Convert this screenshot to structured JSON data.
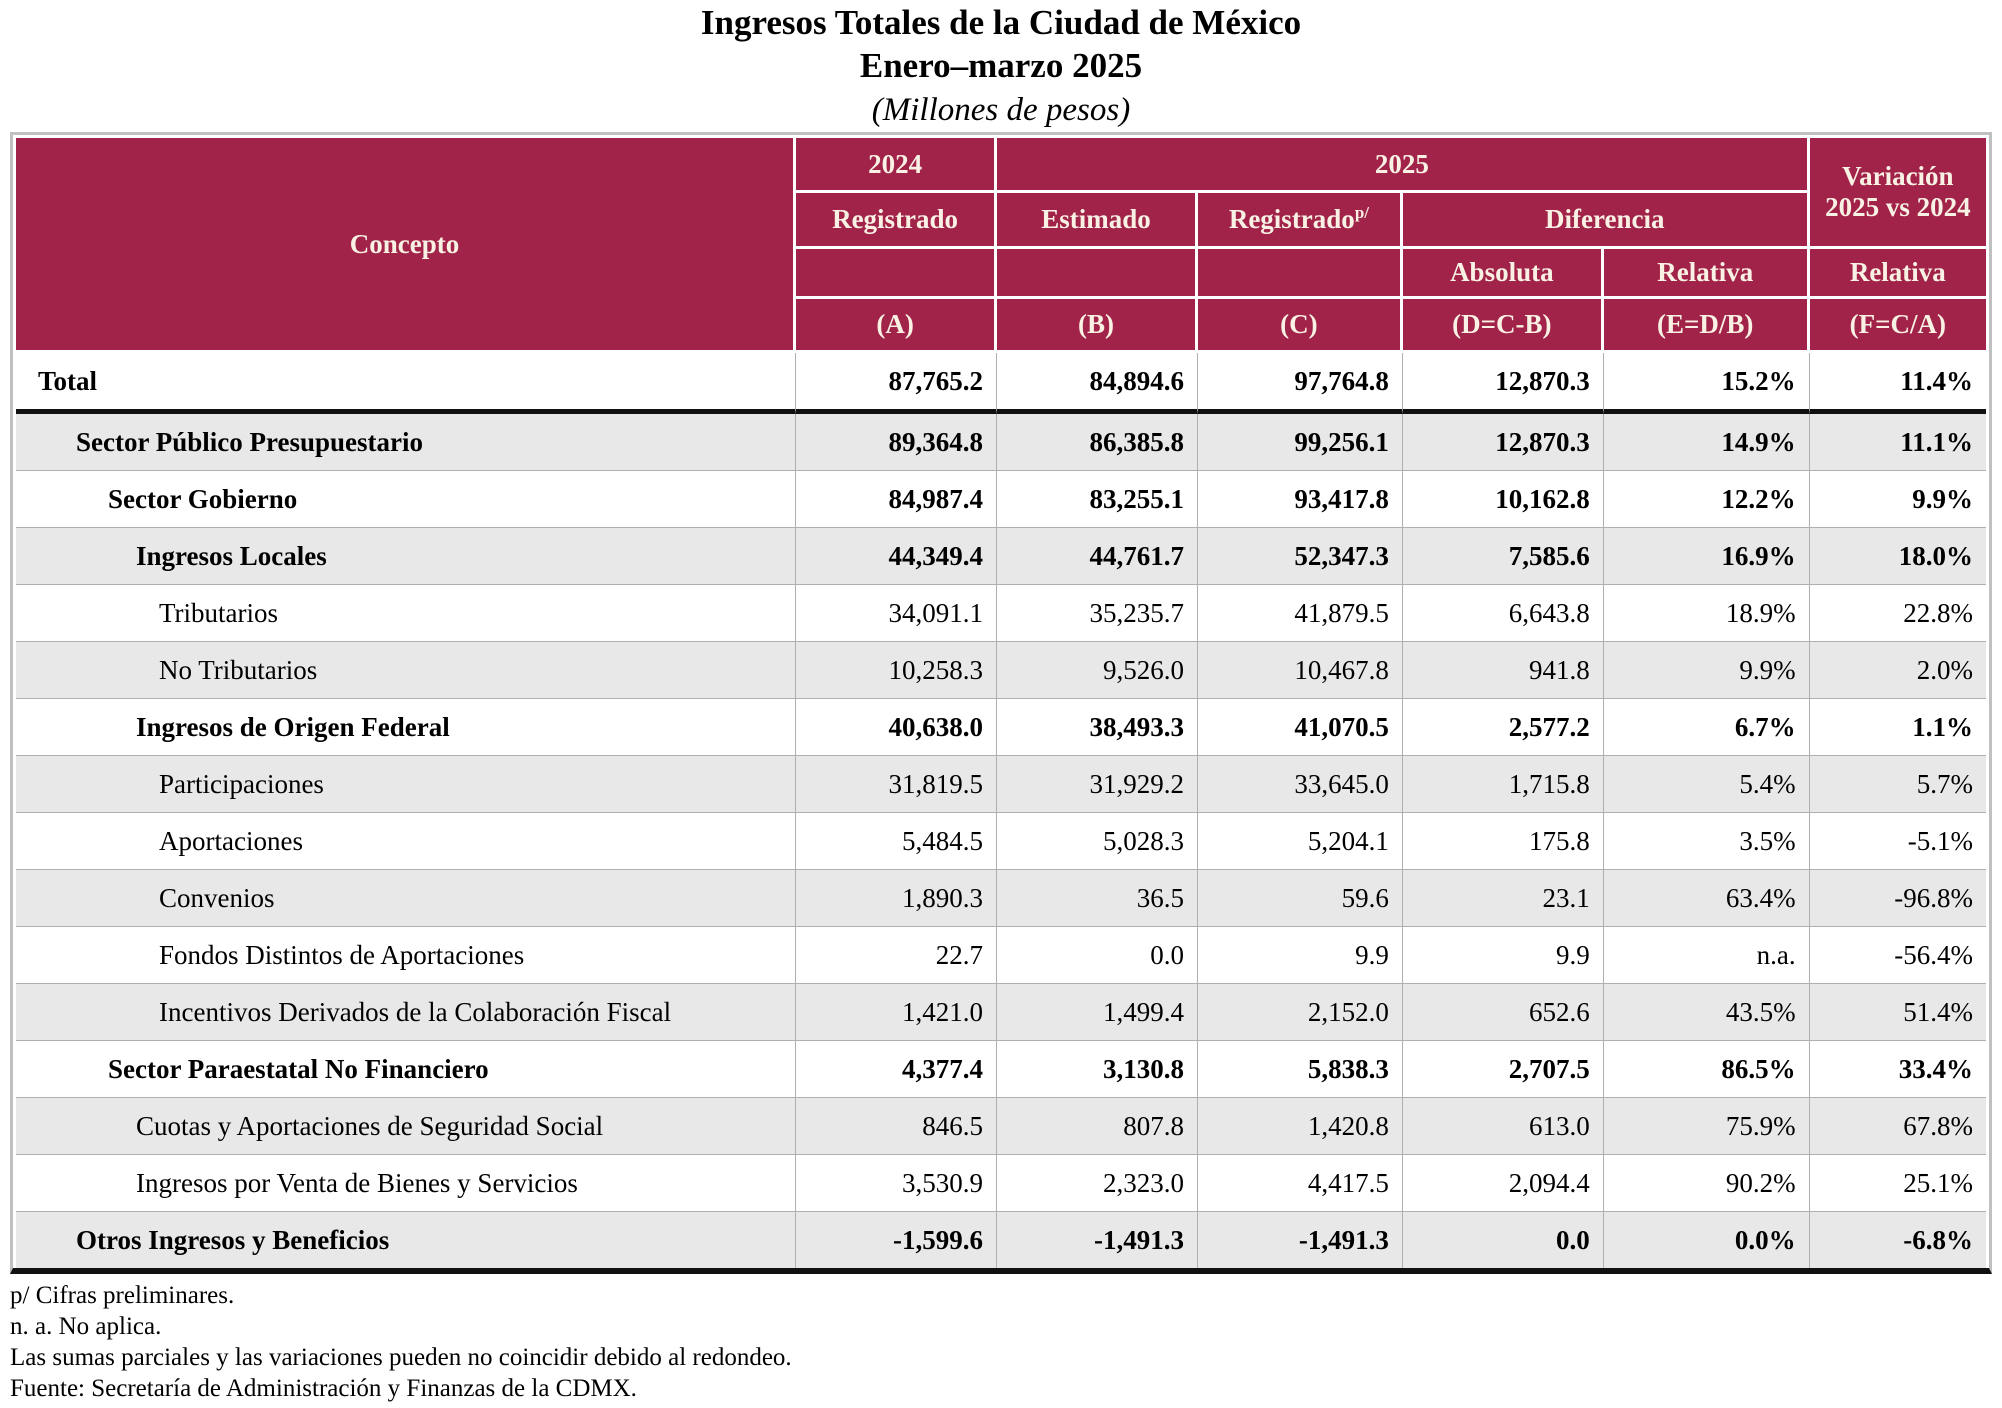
{
  "title": {
    "line1": "Ingresos Totales de la Ciudad de México",
    "line2": "Enero–marzo 2025",
    "line3": "(Millones de pesos)"
  },
  "header": {
    "concepto": "Concepto",
    "year_2024": "2024",
    "year_2025": "2025",
    "variacion": "Variación 2025 vs 2024",
    "registrado": "Registrado",
    "estimado": "Estimado",
    "registrado_p": "Registrado",
    "registrado_sup": "p/",
    "diferencia": "Diferencia",
    "absoluta": "Absoluta",
    "relativa": "Relativa",
    "relativa_f": "Relativa",
    "col_a": "(A)",
    "col_b": "(B)",
    "col_c": "(C)",
    "col_d": "(D=C-B)",
    "col_e": "(E=D/B)",
    "col_f": "(F=C/A)"
  },
  "table": {
    "rows": [
      {
        "label": "Total",
        "indent": 0,
        "bold": true,
        "shaded": false,
        "thick_bottom": true,
        "values": [
          "87,765.2",
          "84,894.6",
          "97,764.8",
          "12,870.3",
          "15.2%",
          "11.4%"
        ]
      },
      {
        "label": "Sector Público Presupuestario",
        "indent": 1,
        "bold": true,
        "shaded": true,
        "thick_bottom": false,
        "values": [
          "89,364.8",
          "86,385.8",
          "99,256.1",
          "12,870.3",
          "14.9%",
          "11.1%"
        ]
      },
      {
        "label": "Sector Gobierno",
        "indent": 2,
        "bold": true,
        "shaded": false,
        "thick_bottom": false,
        "values": [
          "84,987.4",
          "83,255.1",
          "93,417.8",
          "10,162.8",
          "12.2%",
          "9.9%"
        ]
      },
      {
        "label": "Ingresos Locales",
        "indent": 3,
        "bold": true,
        "shaded": true,
        "thick_bottom": false,
        "values": [
          "44,349.4",
          "44,761.7",
          "52,347.3",
          "7,585.6",
          "16.9%",
          "18.0%"
        ]
      },
      {
        "label": "Tributarios",
        "indent": 4,
        "bold": false,
        "shaded": false,
        "thick_bottom": false,
        "values": [
          "34,091.1",
          "35,235.7",
          "41,879.5",
          "6,643.8",
          "18.9%",
          "22.8%"
        ]
      },
      {
        "label": "No Tributarios",
        "indent": 4,
        "bold": false,
        "shaded": true,
        "thick_bottom": false,
        "values": [
          "10,258.3",
          "9,526.0",
          "10,467.8",
          "941.8",
          "9.9%",
          "2.0%"
        ]
      },
      {
        "label": "Ingresos de Origen Federal",
        "indent": 3,
        "bold": true,
        "shaded": false,
        "thick_bottom": false,
        "values": [
          "40,638.0",
          "38,493.3",
          "41,070.5",
          "2,577.2",
          "6.7%",
          "1.1%"
        ]
      },
      {
        "label": "Participaciones",
        "indent": 4,
        "bold": false,
        "shaded": true,
        "thick_bottom": false,
        "values": [
          "31,819.5",
          "31,929.2",
          "33,645.0",
          "1,715.8",
          "5.4%",
          "5.7%"
        ]
      },
      {
        "label": "Aportaciones",
        "indent": 4,
        "bold": false,
        "shaded": false,
        "thick_bottom": false,
        "values": [
          "5,484.5",
          "5,028.3",
          "5,204.1",
          "175.8",
          "3.5%",
          "-5.1%"
        ]
      },
      {
        "label": "Convenios",
        "indent": 4,
        "bold": false,
        "shaded": true,
        "thick_bottom": false,
        "values": [
          "1,890.3",
          "36.5",
          "59.6",
          "23.1",
          "63.4%",
          "-96.8%"
        ]
      },
      {
        "label": "Fondos Distintos de Aportaciones",
        "indent": 4,
        "bold": false,
        "shaded": false,
        "thick_bottom": false,
        "values": [
          "22.7",
          "0.0",
          "9.9",
          "9.9",
          "n.a.",
          "-56.4%"
        ]
      },
      {
        "label": "Incentivos Derivados de la Colaboración Fiscal",
        "indent": 4,
        "bold": false,
        "shaded": true,
        "thick_bottom": false,
        "values": [
          "1,421.0",
          "1,499.4",
          "2,152.0",
          "652.6",
          "43.5%",
          "51.4%"
        ]
      },
      {
        "label": "Sector Paraestatal No Financiero",
        "indent": 2,
        "bold": true,
        "shaded": false,
        "thick_bottom": false,
        "values": [
          "4,377.4",
          "3,130.8",
          "5,838.3",
          "2,707.5",
          "86.5%",
          "33.4%"
        ]
      },
      {
        "label": "Cuotas y Aportaciones de Seguridad Social",
        "indent": 3,
        "bold": false,
        "shaded": true,
        "thick_bottom": false,
        "values": [
          "846.5",
          "807.8",
          "1,420.8",
          "613.0",
          "75.9%",
          "67.8%"
        ]
      },
      {
        "label": "Ingresos por Venta de Bienes y Servicios",
        "indent": 3,
        "bold": false,
        "shaded": false,
        "thick_bottom": false,
        "values": [
          "3,530.9",
          "2,323.0",
          "4,417.5",
          "2,094.4",
          "90.2%",
          "25.1%"
        ]
      },
      {
        "label": "Otros Ingresos y Beneficios",
        "indent": 1,
        "bold": true,
        "shaded": true,
        "thick_bottom": false,
        "values": [
          "-1,599.6",
          "-1,491.3",
          "-1,491.3",
          "0.0",
          "0.0%",
          "-6.8%"
        ]
      }
    ]
  },
  "footnotes": [
    "p/ Cifras preliminares.",
    "n. a. No aplica.",
    "Las sumas parciales y las variaciones pueden no coincidir debido al redondeo.",
    "Fuente: Secretaría de Administración y Finanzas de la CDMX."
  ],
  "colors": {
    "header_bg": "#A12349",
    "header_text": "#F9F2E4",
    "shaded_row": "#E8E8E8",
    "grid_line": "#AFAFAF",
    "outer_border": "#C0C0C0",
    "thick_line": "#111111"
  }
}
